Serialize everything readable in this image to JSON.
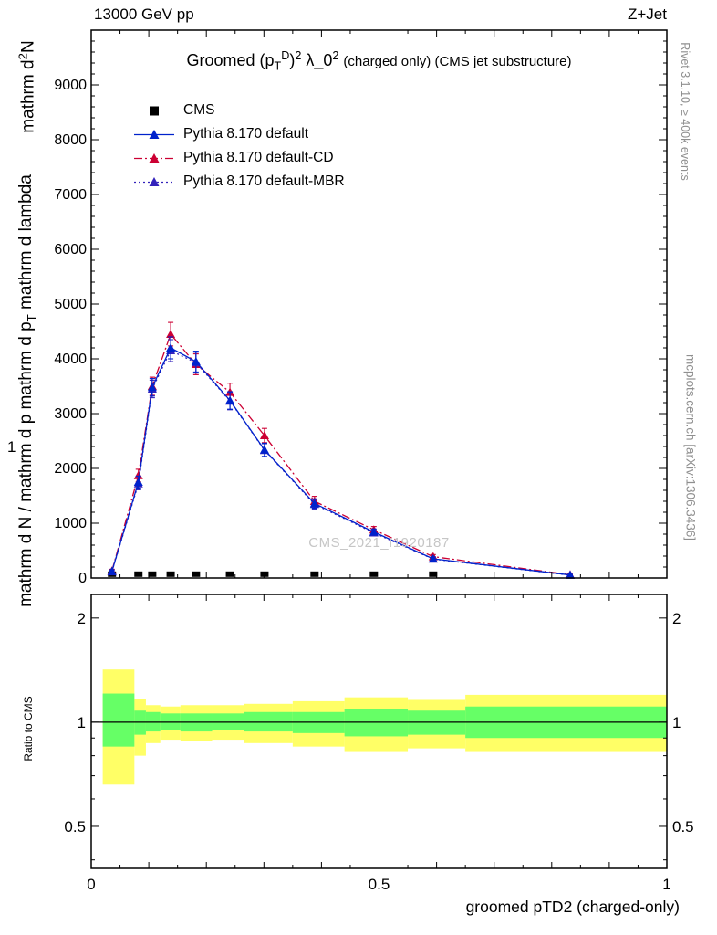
{
  "header": {
    "left": "13000 GeV pp",
    "right": "Z+Jet"
  },
  "main_plot": {
    "title_rich": "Groomed (p<sub>T</sub><sup>D</sup>)<sup>2</sup> λ_0<sup>2</sup> <span class=\"paren\">(charged only) (CMS jet substructure)</span>",
    "ylabel_a_rich": "mathrm d<sup>2</sup>N",
    "ylabel_one": "1",
    "ylabel_c_rich": "mathrm d N / mathrm d p mathrm d p<sub>T</sub> mathrm d lambda"
  },
  "side_notes": {
    "right_top": "Rivet 3.1.10, ≥ 400k events",
    "right_bottom": "mcplots.cern.ch [arXiv:1306.3436]"
  },
  "watermark": "CMS_2021_I1920187",
  "ratio_panel": {
    "ylabel": "Ratio to CMS"
  },
  "xaxis": {
    "title": "groomed pTD2 (charged-only)"
  },
  "legend": {
    "items": [
      {
        "label": "CMS",
        "type": "marker",
        "marker": "square",
        "color": "#000000"
      },
      {
        "label": "Pythia 8.170 default",
        "type": "line",
        "line": "solid",
        "marker": "triangle",
        "color": "#0022cc"
      },
      {
        "label": "Pythia 8.170 default-CD",
        "type": "line",
        "line": "dashdot",
        "marker": "triangle",
        "color": "#cc0033"
      },
      {
        "label": "Pythia 8.170 default-MBR",
        "type": "line",
        "line": "dotted",
        "marker": "triangle",
        "color": "#3322bb"
      }
    ]
  },
  "chart_data": [
    {
      "type": "line",
      "panel": "main",
      "title": "Groomed (pT^D)^2 lambda_0^2 (charged only) (CMS jet substructure)",
      "xlabel": "groomed pTD2 (charged-only)",
      "ylabel": "mathrm d N / mathrm d p mathrm d p_T mathrm d lambda",
      "xlim": [
        0,
        1
      ],
      "ylim": [
        0,
        10000
      ],
      "yticks": [
        0,
        1000,
        2000,
        3000,
        4000,
        5000,
        6000,
        7000,
        8000,
        9000
      ],
      "xticks": [
        0,
        0.5,
        1
      ],
      "grid": false,
      "legend_position": "upper-left",
      "series": [
        {
          "name": "CMS",
          "color": "#000000",
          "marker": "square",
          "style": "none",
          "x": [
            0.036,
            0.082,
            0.106,
            0.138,
            0.182,
            0.241,
            0.301,
            0.388,
            0.491,
            0.594
          ],
          "values": [
            70,
            70,
            70,
            70,
            70,
            70,
            70,
            70,
            70,
            70
          ]
        },
        {
          "name": "Pythia 8.170 default",
          "color": "#0022cc",
          "marker": "triangle",
          "style": "solid",
          "x": [
            0.036,
            0.082,
            0.106,
            0.138,
            0.182,
            0.241,
            0.301,
            0.388,
            0.491,
            0.594,
            0.832
          ],
          "values": [
            120,
            1750,
            3480,
            4200,
            3950,
            3240,
            2340,
            1360,
            840,
            350,
            55
          ],
          "errors": [
            30,
            110,
            160,
            200,
            190,
            160,
            120,
            85,
            55,
            35,
            12
          ]
        },
        {
          "name": "Pythia 8.170 default-CD",
          "color": "#cc0033",
          "marker": "triangle",
          "style": "dashdot",
          "x": [
            0.036,
            0.082,
            0.106,
            0.138,
            0.182,
            0.241,
            0.301,
            0.388,
            0.491,
            0.594,
            0.832
          ],
          "values": [
            130,
            1870,
            3500,
            4450,
            3900,
            3390,
            2600,
            1400,
            880,
            390,
            60
          ],
          "errors": [
            30,
            115,
            165,
            215,
            190,
            165,
            130,
            90,
            60,
            38,
            12
          ]
        },
        {
          "name": "Pythia 8.170 default-MBR",
          "color": "#3322bb",
          "marker": "triangle",
          "style": "dotted",
          "x": [
            0.036,
            0.082,
            0.106,
            0.138,
            0.182,
            0.241,
            0.301,
            0.388,
            0.491,
            0.594,
            0.832
          ],
          "values": [
            115,
            1720,
            3450,
            4150,
            3930,
            3230,
            2330,
            1345,
            825,
            345,
            52
          ],
          "errors": [
            30,
            110,
            160,
            200,
            190,
            160,
            120,
            85,
            55,
            35,
            12
          ]
        }
      ]
    },
    {
      "type": "band",
      "panel": "ratio",
      "ylabel": "Ratio to CMS",
      "yscale": "log",
      "ylim": [
        0.378,
        2.34
      ],
      "yticks": [
        0.5,
        1,
        2
      ],
      "reference_line": 1,
      "band_colors": {
        "outer": "#ffff66",
        "inner": "#66ff66"
      },
      "bins": [
        {
          "x0": 0.02,
          "x1": 0.075,
          "yellow": [
            0.66,
            1.42
          ],
          "green": [
            0.85,
            1.21
          ]
        },
        {
          "x0": 0.075,
          "x1": 0.095,
          "yellow": [
            0.8,
            1.17
          ],
          "green": [
            0.92,
            1.08
          ]
        },
        {
          "x0": 0.095,
          "x1": 0.12,
          "yellow": [
            0.87,
            1.12
          ],
          "green": [
            0.94,
            1.07
          ]
        },
        {
          "x0": 0.12,
          "x1": 0.155,
          "yellow": [
            0.89,
            1.11
          ],
          "green": [
            0.95,
            1.06
          ]
        },
        {
          "x0": 0.155,
          "x1": 0.21,
          "yellow": [
            0.88,
            1.12
          ],
          "green": [
            0.94,
            1.06
          ]
        },
        {
          "x0": 0.21,
          "x1": 0.265,
          "yellow": [
            0.89,
            1.12
          ],
          "green": [
            0.95,
            1.06
          ]
        },
        {
          "x0": 0.265,
          "x1": 0.35,
          "yellow": [
            0.87,
            1.13
          ],
          "green": [
            0.94,
            1.07
          ]
        },
        {
          "x0": 0.35,
          "x1": 0.44,
          "yellow": [
            0.85,
            1.15
          ],
          "green": [
            0.93,
            1.07
          ]
        },
        {
          "x0": 0.44,
          "x1": 0.55,
          "yellow": [
            0.82,
            1.18
          ],
          "green": [
            0.91,
            1.09
          ]
        },
        {
          "x0": 0.55,
          "x1": 0.65,
          "yellow": [
            0.84,
            1.16
          ],
          "green": [
            0.92,
            1.08
          ]
        },
        {
          "x0": 0.65,
          "x1": 1.0,
          "yellow": [
            0.82,
            1.2
          ],
          "green": [
            0.9,
            1.11
          ]
        }
      ]
    }
  ]
}
